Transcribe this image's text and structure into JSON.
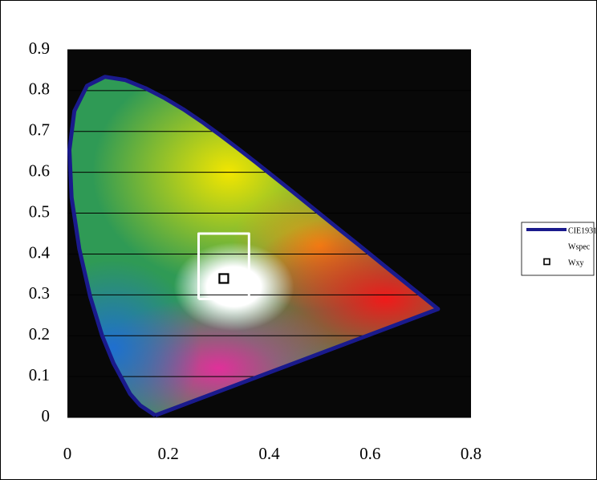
{
  "chart_data": {
    "type": "line",
    "xlim": [
      0,
      0.8
    ],
    "ylim": [
      0,
      0.9
    ],
    "xticks": [
      0,
      0.2,
      0.4,
      0.6,
      0.8
    ],
    "yticks": [
      0,
      0.1,
      0.2,
      0.3,
      0.4,
      0.5,
      0.6,
      0.7,
      0.8,
      0.9
    ],
    "grid": true,
    "legend": "right",
    "series": [
      {
        "name": "CIE1931",
        "color": "#1a1a8c",
        "marker": "none",
        "x": [
          0.1741,
          0.144,
          0.1241,
          0.0913,
          0.0687,
          0.0454,
          0.0235,
          0.0082,
          0.0039,
          0.0139,
          0.0389,
          0.0743,
          0.1142,
          0.1547,
          0.1929,
          0.2296,
          0.2658,
          0.3016,
          0.3373,
          0.3731,
          0.4087,
          0.4441,
          0.4788,
          0.5125,
          0.5448,
          0.5752,
          0.6029,
          0.627,
          0.6482,
          0.6658,
          0.6801,
          0.6915,
          0.7006,
          0.7347,
          0.1741
        ],
        "y": [
          0.005,
          0.0297,
          0.0578,
          0.1327,
          0.2007,
          0.295,
          0.4127,
          0.5384,
          0.6548,
          0.7502,
          0.812,
          0.8338,
          0.8262,
          0.8059,
          0.7816,
          0.7543,
          0.7243,
          0.6923,
          0.6589,
          0.6245,
          0.5896,
          0.5547,
          0.5202,
          0.4866,
          0.4544,
          0.4242,
          0.3965,
          0.3725,
          0.3514,
          0.334,
          0.3197,
          0.3083,
          0.2993,
          0.2653,
          0.005
        ]
      },
      {
        "name": "Wspec",
        "color": "#ffffff",
        "marker": "none",
        "x": [
          0.26,
          0.36,
          0.36,
          0.26,
          0.26
        ],
        "y": [
          0.29,
          0.29,
          0.45,
          0.45,
          0.29
        ]
      },
      {
        "name": "Wxy",
        "color": "#000000",
        "marker": "square",
        "x": [
          0.31
        ],
        "y": [
          0.34
        ]
      }
    ]
  }
}
